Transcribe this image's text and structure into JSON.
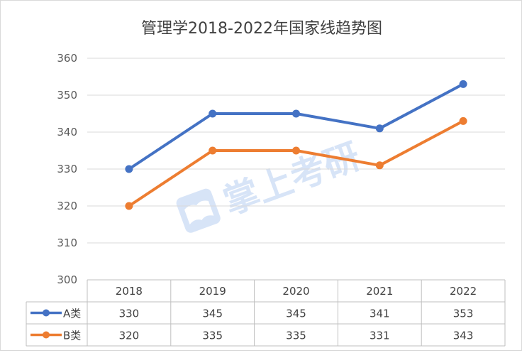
{
  "chart_data": {
    "type": "line",
    "title": "管理学2018-2022年国家线趋势图",
    "categories": [
      "2018",
      "2019",
      "2020",
      "2021",
      "2022"
    ],
    "ylim": [
      300,
      360
    ],
    "yticks": [
      300,
      310,
      320,
      330,
      340,
      350,
      360
    ],
    "grid": true,
    "legend": "data-table",
    "series": [
      {
        "name": "A类",
        "color": "#4472c4",
        "values": [
          330,
          345,
          345,
          341,
          353
        ]
      },
      {
        "name": "B类",
        "color": "#ed7d31",
        "values": [
          320,
          335,
          335,
          331,
          343
        ]
      }
    ]
  },
  "watermark": "掌上考研"
}
